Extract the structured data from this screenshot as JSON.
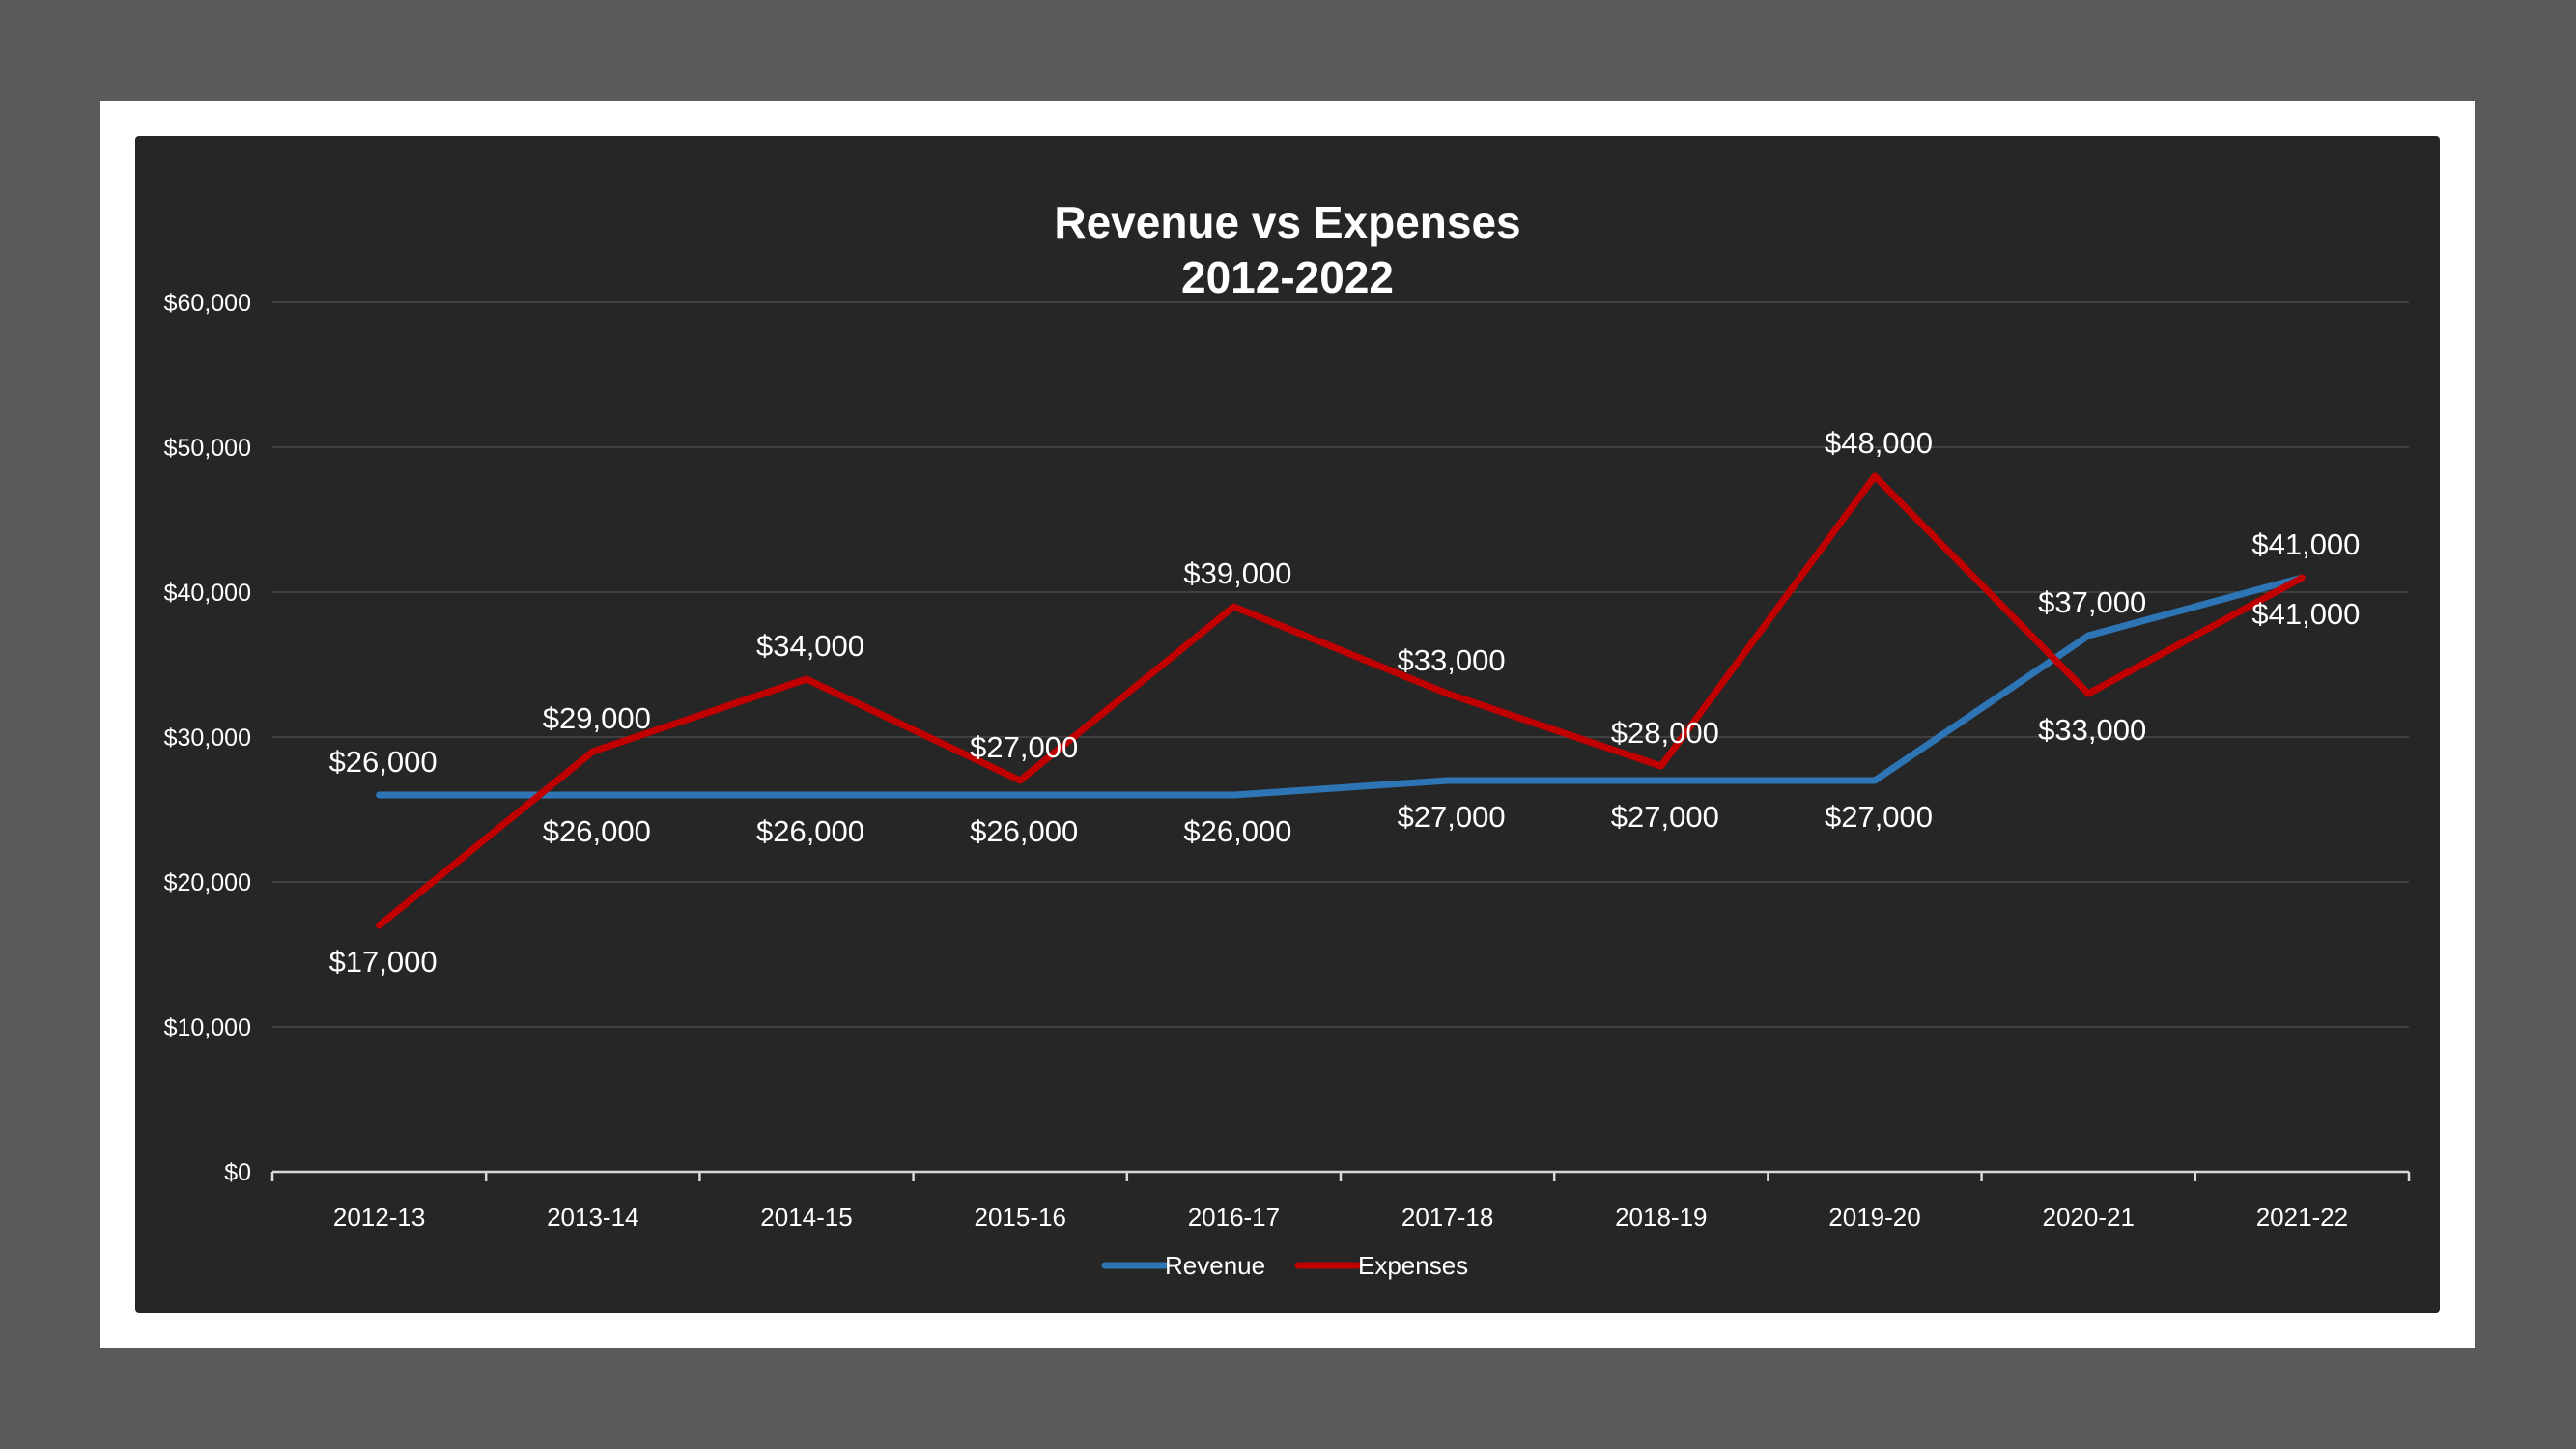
{
  "chart_data": {
    "type": "line",
    "title": "Revenue vs Expenses",
    "subtitle": "2012-2022",
    "xlabel": "",
    "ylabel": "",
    "categories": [
      "2012-13",
      "2013-14",
      "2014-15",
      "2015-16",
      "2016-17",
      "2017-18",
      "2018-19",
      "2019-20",
      "2020-21",
      "2021-22"
    ],
    "series": [
      {
        "name": "Revenue",
        "color": "#2e75b6",
        "values": [
          26000,
          26000,
          26000,
          26000,
          26000,
          27000,
          27000,
          27000,
          37000,
          41000
        ],
        "labels": [
          "$26,000",
          "$26,000",
          "$26,000",
          "$26,000",
          "$26,000",
          "$27,000",
          "$27,000",
          "$27,000",
          "$37,000",
          "$41,000"
        ]
      },
      {
        "name": "Expenses",
        "color": "#c00000",
        "values": [
          17000,
          29000,
          34000,
          27000,
          39000,
          33000,
          28000,
          48000,
          33000,
          41000
        ],
        "labels": [
          "$17,000",
          "$29,000",
          "$34,000",
          "$27,000",
          "$39,000",
          "$33,000",
          "$28,000",
          "$48,000",
          "$33,000",
          "$41,000"
        ]
      }
    ],
    "ylim": [
      0,
      60000
    ],
    "yticks": [
      0,
      10000,
      20000,
      30000,
      40000,
      50000,
      60000
    ],
    "ytick_labels": [
      "$0",
      "$10,000",
      "$20,000",
      "$30,000",
      "$40,000",
      "$50,000",
      "$60,000"
    ],
    "grid": true,
    "legend_position": "bottom",
    "background_color": "#262626",
    "gridline_color": "#404040"
  }
}
